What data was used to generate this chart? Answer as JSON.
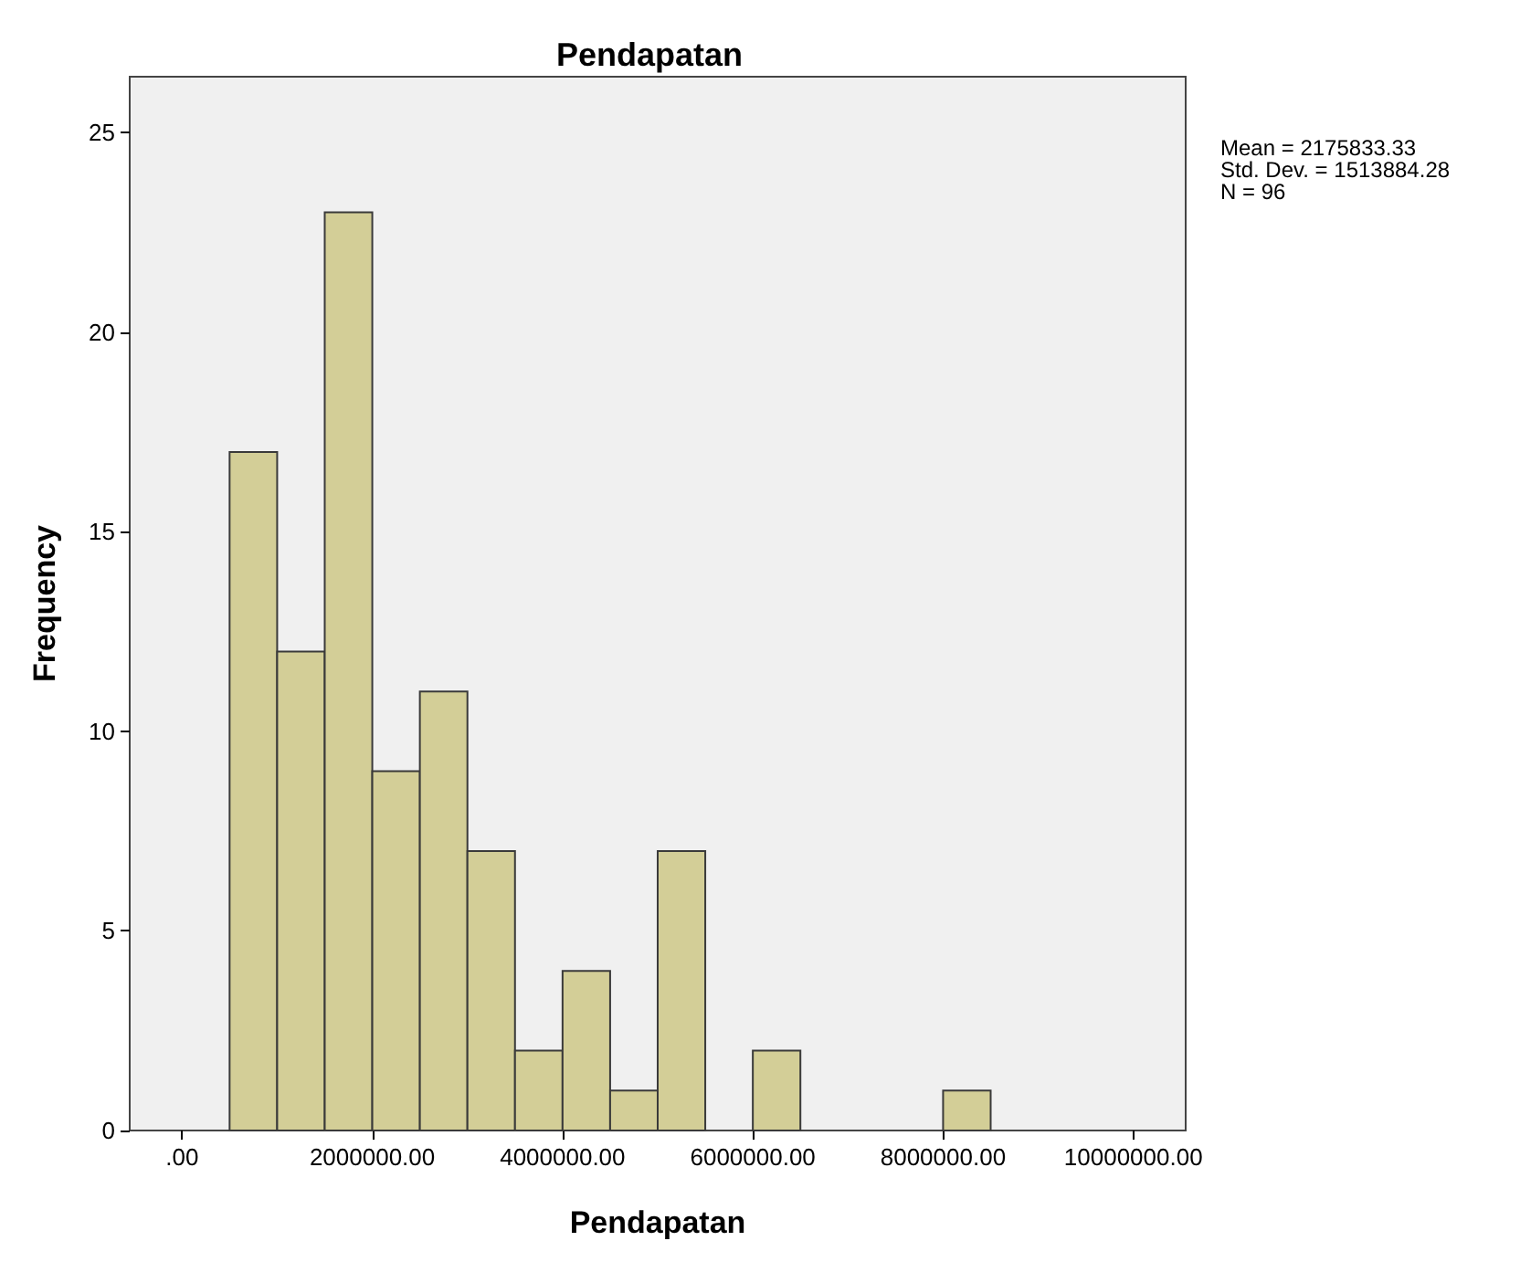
{
  "chart_data": {
    "type": "histogram",
    "title": "Pendapatan",
    "xlabel": "Pendapatan",
    "ylabel": "Frequency",
    "bins": [
      500000,
      1000000,
      1500000,
      2000000,
      2500000,
      3000000,
      3500000,
      4000000,
      4500000,
      5000000,
      5500000,
      6000000,
      6500000,
      7000000,
      7500000,
      8000000,
      8500000
    ],
    "values": [
      17,
      12,
      23,
      9,
      11,
      7,
      2,
      4,
      1,
      7,
      0,
      2,
      0,
      0,
      0,
      1
    ],
    "color": "#d3ce97",
    "xlim": [
      -550000,
      10550000
    ],
    "xticks": [
      {
        "value": 0,
        "label": ".00"
      },
      {
        "value": 2000000,
        "label": "2000000.00"
      },
      {
        "value": 4000000,
        "label": "4000000.00"
      },
      {
        "value": 6000000,
        "label": "6000000.00"
      },
      {
        "value": 8000000,
        "label": "8000000.00"
      },
      {
        "value": 10000000,
        "label": "10000000.00"
      }
    ],
    "ylim": [
      0,
      26.4
    ],
    "yticks": [
      0,
      5,
      10,
      15,
      20,
      25
    ],
    "grid": false,
    "annotations": [
      "Mean = 2175833.33",
      "Std. Dev. = 1513884.28",
      "N = 96"
    ]
  }
}
